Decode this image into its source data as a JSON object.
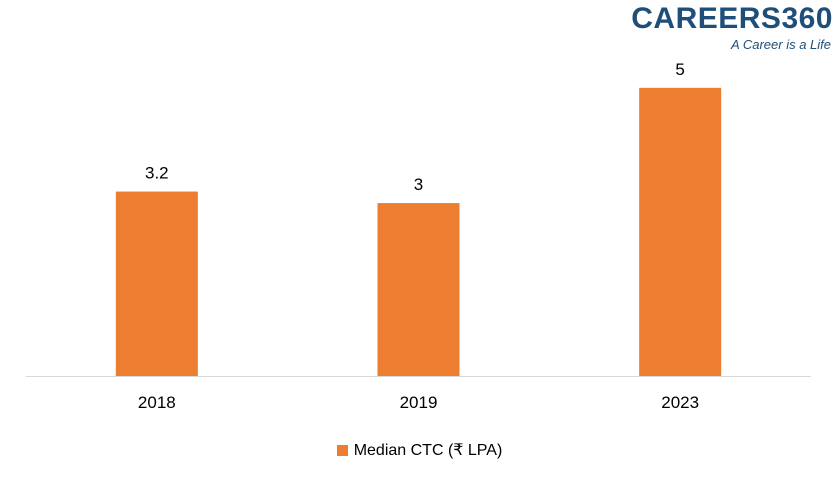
{
  "logo": {
    "text": "CAREERS360",
    "tagline": "A Career is a Life"
  },
  "chart_data": {
    "type": "bar",
    "categories": [
      "2018",
      "2019",
      "2023"
    ],
    "series": [
      {
        "name": "Median CTC (₹ LPA)",
        "values": [
          3.2,
          3,
          5
        ],
        "color": "#ed7d31"
      }
    ],
    "data_labels": [
      "3.2",
      "3",
      "5"
    ],
    "ylim": [
      0,
      5.5
    ],
    "grid": false,
    "legend_position": "bottom"
  }
}
